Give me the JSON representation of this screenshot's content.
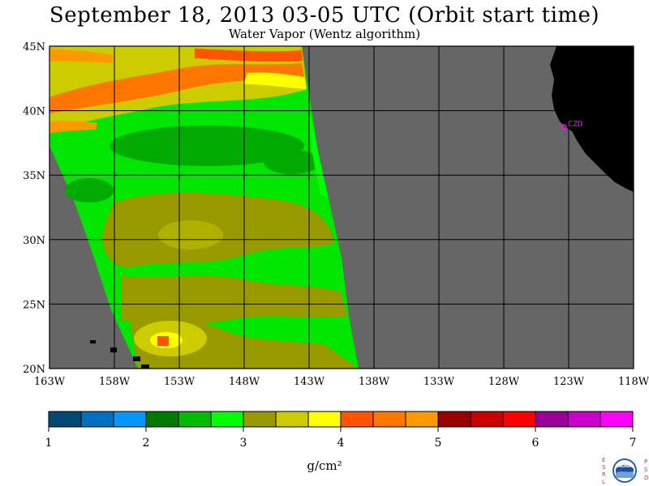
{
  "header": {
    "title": "September 18, 2013  03-05 UTC  (Orbit start time)",
    "subtitle": "Water Vapor (Wentz algorithm)"
  },
  "map": {
    "lat_labels": [
      "45N",
      "40N",
      "35N",
      "30N",
      "25N",
      "20N"
    ],
    "lat_values": [
      45,
      40,
      35,
      30,
      25,
      20
    ],
    "lon_labels": [
      "163W",
      "158W",
      "153W",
      "148W",
      "143W",
      "138W",
      "133W",
      "128W",
      "123W",
      "118W"
    ],
    "lon_values": [
      -163,
      -158,
      -153,
      -148,
      -143,
      -138,
      -133,
      -128,
      -123,
      -118
    ],
    "station_label": "CZD",
    "colors": {
      "ocean_no_data": "#666666",
      "land": "#000000",
      "grid": "#000000",
      "station": "#ff00ff"
    }
  },
  "colorbar": {
    "tick_labels": [
      "1",
      "2",
      "3",
      "4",
      "5",
      "6",
      "7"
    ],
    "unit_label": "g/cm²",
    "colors": [
      "#004a75",
      "#0070c0",
      "#0098ff",
      "#007a00",
      "#00bb00",
      "#00ff00",
      "#999900",
      "#cccc00",
      "#ffff00",
      "#ff5500",
      "#ff7700",
      "#ff9900",
      "#990000",
      "#cc0000",
      "#ff0000",
      "#990099",
      "#cc00cc",
      "#ff00ff"
    ]
  },
  "logo": {
    "left_letters": [
      "E",
      "S",
      "R",
      "L"
    ],
    "right_letters": [
      "P",
      "S",
      "D"
    ],
    "center_text": "NOAA"
  }
}
